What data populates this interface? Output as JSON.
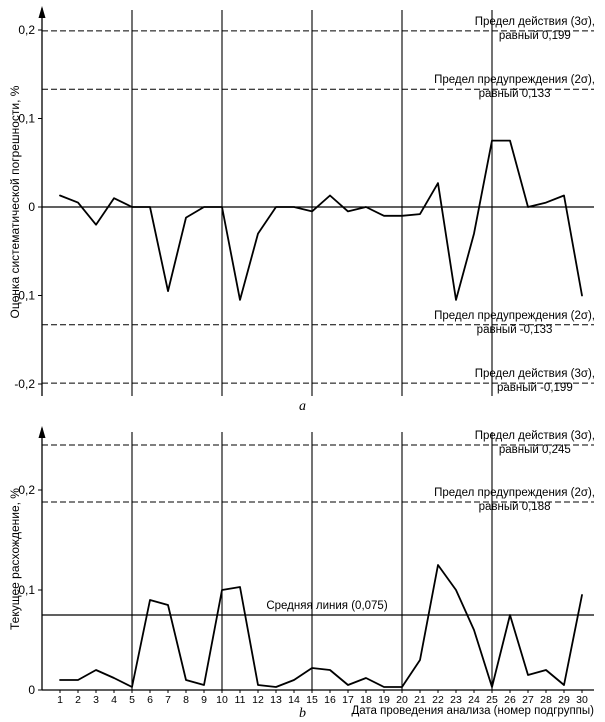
{
  "figure": {
    "background": "#ffffff",
    "line_color": "#000000"
  },
  "chart_data": [
    {
      "id": "a",
      "type": "line",
      "caption": "a",
      "ylabel": "Оценка систематической погрешности, %",
      "ylim": [
        -0.22,
        0.22
      ],
      "yticks": [
        0.2,
        0.1,
        0,
        -0.1,
        -0.2
      ],
      "ytick_labels": [
        "0,2",
        "0,1",
        "0",
        "-0,1",
        "-0,2"
      ],
      "x": [
        1,
        2,
        3,
        4,
        5,
        6,
        7,
        8,
        9,
        10,
        11,
        12,
        13,
        14,
        15,
        16,
        17,
        18,
        19,
        20,
        21,
        22,
        23,
        24,
        25,
        26,
        27,
        28,
        29,
        30
      ],
      "values": [
        0.013,
        0.005,
        -0.02,
        0.01,
        0,
        0,
        -0.095,
        -0.012,
        0,
        0,
        -0.105,
        -0.03,
        0,
        0,
        -0.005,
        0.013,
        -0.005,
        0,
        -0.01,
        -0.01,
        -0.008,
        0.027,
        -0.105,
        -0.03,
        0.075,
        0.075,
        0,
        0.005,
        0.013,
        -0.1
      ],
      "center_line": {
        "value": 0
      },
      "vgrid_x": [
        5,
        10,
        15,
        20,
        25
      ],
      "grid": "vertical",
      "legend": "none",
      "limit_lines": [
        {
          "value": 0.199,
          "label_line1": "Предел действия (3σ),",
          "label_line2": "равный 0,199"
        },
        {
          "value": 0.133,
          "label_line1": "Предел предупреждения (2σ),",
          "label_line2": "равный 0,133"
        },
        {
          "value": -0.133,
          "label_line1": "Предел предупреждения (2σ),",
          "label_line2": "равный -0,133"
        },
        {
          "value": -0.199,
          "label_line1": "Предел действия (3σ),",
          "label_line2": "равный -0,199"
        }
      ]
    },
    {
      "id": "b",
      "type": "line",
      "caption": "b",
      "ylabel": "Текущее расхождение, %",
      "xlabel": "Дата проведения анализа (номер подгруппы)",
      "ylim": [
        0,
        0.26
      ],
      "yticks": [
        0,
        0.1,
        0.2
      ],
      "ytick_labels": [
        "0",
        "0,1",
        "0,2"
      ],
      "x": [
        1,
        2,
        3,
        4,
        5,
        6,
        7,
        8,
        9,
        10,
        11,
        12,
        13,
        14,
        15,
        16,
        17,
        18,
        19,
        20,
        21,
        22,
        23,
        24,
        25,
        26,
        27,
        28,
        29,
        30
      ],
      "values": [
        0.01,
        0.01,
        0.02,
        0.012,
        0.003,
        0.09,
        0.085,
        0.01,
        0.005,
        0.1,
        0.103,
        0.005,
        0.003,
        0.01,
        0.022,
        0.02,
        0.005,
        0.012,
        0.003,
        0.003,
        0.03,
        0.125,
        0.1,
        0.06,
        0.003,
        0.075,
        0.015,
        0.02,
        0.005,
        0.095
      ],
      "center_line": {
        "value": 0.075,
        "label": "Средняя линия (0,075)"
      },
      "vgrid_x": [
        5,
        10,
        15,
        20,
        25
      ],
      "grid": "vertical",
      "legend": "none",
      "limit_lines": [
        {
          "value": 0.245,
          "label_line1": "Предел действия (3σ),",
          "label_line2": "равный 0,245"
        },
        {
          "value": 0.188,
          "label_line1": "Предел предупреждения (2σ),",
          "label_line2": "равный 0,188"
        }
      ]
    }
  ]
}
